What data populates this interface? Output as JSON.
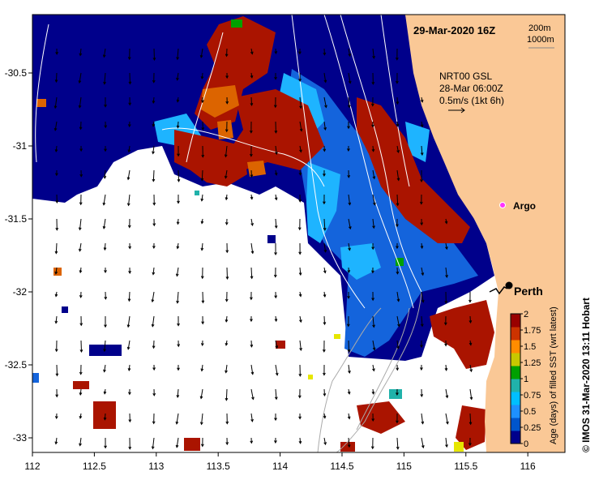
{
  "title": "29-Mar-2020 16Z",
  "depth_contours": [
    "200m",
    "1000m"
  ],
  "currents": {
    "source": "NRT00 GSL",
    "time": "28-Mar 06:00Z",
    "scale_label": "0.5m/s (1kt 6h)"
  },
  "markers": {
    "argo_label": "Argo",
    "city_label": "Perth",
    "argo_lon": 115.85,
    "argo_lat": -31.45,
    "city_lon": 115.86,
    "city_lat": -31.95
  },
  "axes": {
    "x_ticks": [
      "112",
      "112.5",
      "113",
      "113.5",
      "114",
      "114.5",
      "115",
      "115.5",
      "116"
    ],
    "y_ticks": [
      "-30.5",
      "-31",
      "-31.5",
      "-32",
      "-32.5",
      "-33"
    ],
    "xlim": [
      112,
      116.3
    ],
    "ylim": [
      -33.1,
      -30.1
    ]
  },
  "colorbar": {
    "label": "Age (days) of filled SST (wrt latest)",
    "ticks": [
      "0",
      "0.25",
      "0.5",
      "0.75",
      "1",
      "1.25",
      "1.5",
      "1.75",
      "2"
    ],
    "range": [
      0,
      2
    ],
    "colors": [
      "#00008b",
      "#0055cc",
      "#1e90ff",
      "#00bfff",
      "#20b2aa",
      "#00a000",
      "#c8c800",
      "#ff8c00",
      "#cc3300",
      "#990000"
    ]
  },
  "credit": "© IMOS 31-Mar-2020 13:11 Hobart",
  "colors": {
    "land": "#fac896",
    "deep_blue": "#00008b",
    "mid_blue": "#1464dc",
    "light_blue": "#1eb4ff",
    "red": "#aa1400",
    "orange": "#dc6400",
    "white_area": "#ffffff"
  }
}
